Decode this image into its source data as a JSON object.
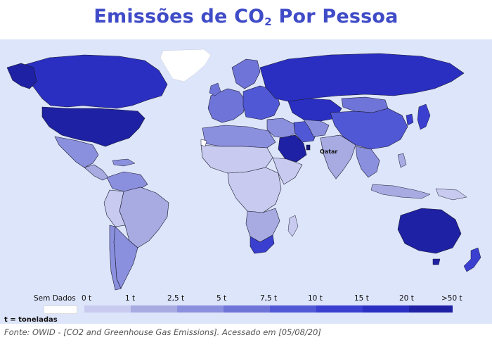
{
  "title": {
    "main": "Emissões de CO",
    "subscript": "2",
    "suffix": " Por Pessoa"
  },
  "map": {
    "annotation": "Qatar",
    "colors": {
      "ocean": "#dde5fb",
      "no_data": "#ffffff",
      "border": "#1a1a2e"
    }
  },
  "legend": {
    "no_data_label": "Sem Dados",
    "bins": [
      {
        "label": "0 t",
        "color": "#c8cbef"
      },
      {
        "label": "1 t",
        "color": "#a7abe2"
      },
      {
        "label": "2,5 t",
        "color": "#8b90de"
      },
      {
        "label": "5 t",
        "color": "#6f74d8"
      },
      {
        "label": "7,5 t",
        "color": "#5158d5"
      },
      {
        "label": "10 t",
        "color": "#3a3fcf"
      },
      {
        "label": "15 t",
        "color": "#2a2fc2"
      },
      {
        "label": "20 t",
        "color": "#1e21a3"
      },
      {
        "label": ">50 t",
        "color": "#14157a"
      }
    ]
  },
  "unit_note": "t = toneladas",
  "source": {
    "prefix": "Fonte",
    "text": ": OWID - [CO2 and Greenhouse Gas Emissions]. Acessado em [05/08/20]"
  }
}
